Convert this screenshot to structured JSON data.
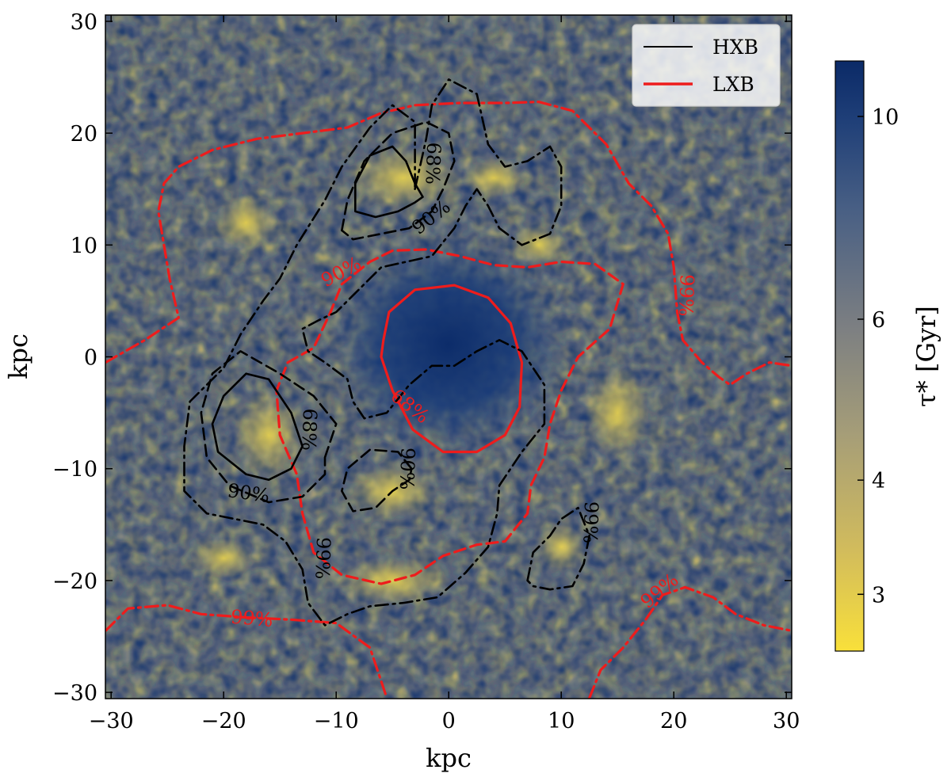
{
  "chart_data": {
    "type": "heatmap",
    "title": "",
    "xlabel": "kpc",
    "ylabel": "kpc",
    "xlim": [
      -30.5,
      30.5
    ],
    "ylim": [
      -30.5,
      30.5
    ],
    "xticks": [
      -30,
      -20,
      -10,
      0,
      10,
      20,
      30
    ],
    "yticks": [
      -30,
      -20,
      -10,
      0,
      10,
      20,
      30
    ],
    "tick_labels": [
      "−30",
      "−20",
      "−10",
      "0",
      "10",
      "20",
      "30"
    ],
    "grid": false,
    "colorbar": {
      "label": "τ* [Gyr]",
      "range": [
        2.6,
        11.5
      ],
      "ticks": [
        3,
        4,
        6,
        10
      ],
      "tick_labels": [
        "3",
        "4",
        "6",
        "10"
      ],
      "colors": {
        "low": "#f7df3c",
        "mid": "#7f7f7f",
        "high": "#0b2d6b"
      }
    },
    "legend": {
      "location": "top-right",
      "entries": [
        {
          "label": "HXB",
          "color": "#000000"
        },
        {
          "label": "LXB",
          "color": "#ee1c1c"
        }
      ]
    },
    "contours": [
      {
        "series": "LXB",
        "level": "68%",
        "style": "solid",
        "color": "#ee1c1c",
        "points": [
          [
            -5.8,
            1.5
          ],
          [
            -5.3,
            4.0
          ],
          [
            -3.0,
            6.0
          ],
          [
            0.5,
            6.4
          ],
          [
            3.5,
            5.3
          ],
          [
            5.5,
            3.0
          ],
          [
            6.5,
            -0.5
          ],
          [
            6.3,
            -4.5
          ],
          [
            5.0,
            -7.0
          ],
          [
            2.5,
            -8.5
          ],
          [
            -0.5,
            -8.5
          ],
          [
            -3.2,
            -6.5
          ],
          [
            -5.0,
            -3.0
          ],
          [
            -6.0,
            0.0
          ],
          [
            -5.8,
            1.5
          ]
        ]
      },
      {
        "series": "LXB",
        "level": "90%",
        "style": "dashed",
        "color": "#ee1c1c",
        "points": [
          [
            -9.5,
            6.5
          ],
          [
            -7.0,
            8.5
          ],
          [
            -5.0,
            9.5
          ],
          [
            -2.0,
            9.6
          ],
          [
            1.0,
            9.0
          ],
          [
            4.0,
            8.2
          ],
          [
            7.0,
            8.0
          ],
          [
            10.0,
            8.5
          ],
          [
            13.0,
            8.3
          ],
          [
            15.5,
            6.5
          ],
          [
            14.3,
            2.5
          ],
          [
            11.5,
            0.0
          ],
          [
            10.0,
            -3.0
          ],
          [
            9.0,
            -6.0
          ],
          [
            8.5,
            -9.0
          ],
          [
            7.3,
            -11.5
          ],
          [
            7.0,
            -14.0
          ],
          [
            5.0,
            -16.5
          ],
          [
            2.5,
            -16.8
          ],
          [
            -0.5,
            -17.8
          ],
          [
            -3.0,
            -19.5
          ],
          [
            -6.0,
            -20.3
          ],
          [
            -9.5,
            -19.5
          ],
          [
            -12.0,
            -17.5
          ],
          [
            -13.0,
            -14.0
          ],
          [
            -13.5,
            -10.5
          ],
          [
            -15.0,
            -7.0
          ],
          [
            -15.3,
            -3.0
          ],
          [
            -14.3,
            -0.5
          ],
          [
            -12.0,
            0.8
          ],
          [
            -10.5,
            4.0
          ],
          [
            -9.5,
            6.5
          ]
        ]
      },
      {
        "series": "LXB",
        "level": "99%",
        "style": "dashdot",
        "color": "#ee1c1c",
        "points": [
          [
            -30.5,
            -0.5
          ],
          [
            -27.0,
            1.5
          ],
          [
            -24.0,
            3.5
          ],
          [
            -24.8,
            7.0
          ],
          [
            -25.3,
            10.0
          ],
          [
            -25.8,
            13.0
          ],
          [
            -25.3,
            15.5
          ],
          [
            -24.0,
            17.0
          ],
          [
            -21.0,
            18.5
          ],
          [
            -17.0,
            19.5
          ],
          [
            -13.0,
            20.0
          ],
          [
            -9.0,
            20.5
          ],
          [
            -6.0,
            21.8
          ],
          [
            -3.0,
            22.5
          ],
          [
            1.0,
            22.7
          ],
          [
            5.0,
            22.7
          ],
          [
            8.0,
            22.8
          ],
          [
            11.0,
            22.0
          ],
          [
            14.0,
            19.0
          ],
          [
            16.0,
            15.5
          ],
          [
            18.0,
            13.5
          ],
          [
            19.5,
            11.0
          ],
          [
            20.0,
            8.0
          ],
          [
            20.3,
            4.0
          ],
          [
            20.8,
            1.5
          ],
          [
            22.5,
            -0.5
          ],
          [
            24.0,
            -1.8
          ],
          [
            25.0,
            -2.5
          ],
          [
            26.5,
            -1.5
          ],
          [
            28.5,
            -0.5
          ],
          [
            30.5,
            -0.8
          ]
        ]
      },
      {
        "series": "LXB",
        "level": "99%",
        "style": "dashdot",
        "color": "#ee1c1c",
        "points": [
          [
            -30.5,
            -24.5
          ],
          [
            -28.5,
            -22.5
          ],
          [
            -25.0,
            -22.2
          ],
          [
            -22.0,
            -23.0
          ],
          [
            -18.0,
            -23.3
          ],
          [
            -14.0,
            -23.5
          ],
          [
            -10.0,
            -23.8
          ],
          [
            -7.0,
            -26.0
          ],
          [
            -5.5,
            -30.5
          ]
        ]
      },
      {
        "series": "LXB",
        "level": "99%",
        "style": "dashdot",
        "color": "#ee1c1c",
        "points": [
          [
            12.5,
            -30.5
          ],
          [
            13.5,
            -28.0
          ],
          [
            15.5,
            -26.0
          ],
          [
            17.5,
            -23.5
          ],
          [
            19.0,
            -21.3
          ],
          [
            21.0,
            -20.6
          ],
          [
            23.5,
            -21.5
          ],
          [
            25.5,
            -23.0
          ],
          [
            28.0,
            -24.0
          ],
          [
            30.5,
            -24.5
          ]
        ]
      },
      {
        "series": "HXB",
        "level": "68%",
        "style": "solid",
        "color": "#000000",
        "points": [
          [
            -2.3,
            14.3
          ],
          [
            -3.0,
            15.5
          ],
          [
            -3.8,
            17.5
          ],
          [
            -5.0,
            18.8
          ],
          [
            -7.0,
            18.0
          ],
          [
            -8.3,
            15.5
          ],
          [
            -8.3,
            13.0
          ],
          [
            -6.5,
            12.5
          ],
          [
            -4.5,
            13.0
          ],
          [
            -3.0,
            13.8
          ],
          [
            -2.3,
            14.3
          ]
        ]
      },
      {
        "series": "HXB",
        "level": "68%",
        "style": "solid",
        "color": "#000000",
        "points": [
          [
            -13.0,
            -8.0
          ],
          [
            -14.0,
            -5.0
          ],
          [
            -16.0,
            -2.0
          ],
          [
            -18.0,
            -1.5
          ],
          [
            -20.0,
            -3.5
          ],
          [
            -21.0,
            -6.0
          ],
          [
            -20.5,
            -8.5
          ],
          [
            -18.0,
            -10.5
          ],
          [
            -16.0,
            -11.0
          ],
          [
            -14.0,
            -10.0
          ],
          [
            -13.0,
            -8.0
          ]
        ]
      },
      {
        "series": "HXB",
        "level": "90%",
        "style": "dashed",
        "color": "#000000",
        "points": [
          [
            -9.5,
            11.3
          ],
          [
            -9.0,
            14.0
          ],
          [
            -7.5,
            17.5
          ],
          [
            -5.0,
            20.0
          ],
          [
            -2.0,
            21.0
          ],
          [
            0.0,
            20.0
          ],
          [
            0.5,
            17.5
          ],
          [
            -0.5,
            15.0
          ],
          [
            -1.5,
            13.0
          ],
          [
            -3.5,
            11.5
          ],
          [
            -6.0,
            11.0
          ],
          [
            -8.5,
            10.5
          ],
          [
            -9.5,
            11.3
          ]
        ]
      },
      {
        "series": "HXB",
        "level": "90%",
        "style": "dashed",
        "color": "#000000",
        "points": [
          [
            -11.0,
            -9.0
          ],
          [
            -10.0,
            -6.0
          ],
          [
            -12.0,
            -3.5
          ],
          [
            -15.0,
            -1.5
          ],
          [
            -18.5,
            0.5
          ],
          [
            -21.0,
            -1.5
          ],
          [
            -22.0,
            -5.0
          ],
          [
            -21.5,
            -9.0
          ],
          [
            -19.5,
            -11.5
          ],
          [
            -16.0,
            -13.0
          ],
          [
            -13.0,
            -12.5
          ],
          [
            -11.0,
            -10.5
          ],
          [
            -11.0,
            -9.0
          ]
        ]
      },
      {
        "series": "HXB",
        "level": "90%",
        "style": "dashed",
        "color": "#000000",
        "points": [
          [
            -3.3,
            -10.0
          ],
          [
            -4.5,
            -8.5
          ],
          [
            -7.0,
            -8.3
          ],
          [
            -9.0,
            -10.0
          ],
          [
            -9.5,
            -12.0
          ],
          [
            -8.5,
            -13.8
          ],
          [
            -6.5,
            -13.5
          ],
          [
            -5.0,
            -12.0
          ],
          [
            -3.5,
            -11.0
          ],
          [
            -3.3,
            -10.0
          ]
        ]
      },
      {
        "series": "HXB",
        "level": "99%",
        "style": "dashdot",
        "color": "#000000",
        "points": [
          [
            -3.0,
            15.0
          ],
          [
            -2.0,
            19.5
          ],
          [
            -1.5,
            22.5
          ],
          [
            0.0,
            24.8
          ],
          [
            2.5,
            23.5
          ],
          [
            3.5,
            19.0
          ],
          [
            5.0,
            17.0
          ],
          [
            7.0,
            17.5
          ],
          [
            9.0,
            18.8
          ],
          [
            10.0,
            17.0
          ],
          [
            10.0,
            13.5
          ],
          [
            9.0,
            11.0
          ],
          [
            6.5,
            10.0
          ],
          [
            4.5,
            11.5
          ],
          [
            3.5,
            13.5
          ],
          [
            2.5,
            15.0
          ],
          [
            1.5,
            13.5
          ],
          [
            0.5,
            11.5
          ],
          [
            -1.5,
            9.0
          ],
          [
            -6.0,
            8.0
          ],
          [
            -8.0,
            6.0
          ],
          [
            -10.0,
            4.0
          ],
          [
            -11.5,
            3.3
          ],
          [
            -13.0,
            2.5
          ],
          [
            -12.5,
            0.5
          ],
          [
            -11.0,
            -0.5
          ],
          [
            -9.0,
            -2.0
          ],
          [
            -8.5,
            -4.0
          ],
          [
            -7.5,
            -5.5
          ],
          [
            -5.5,
            -5.0
          ],
          [
            -3.5,
            -2.5
          ],
          [
            -1.5,
            -0.8
          ],
          [
            0.5,
            -0.8
          ],
          [
            2.5,
            0.5
          ],
          [
            4.5,
            1.5
          ],
          [
            6.5,
            0.5
          ],
          [
            8.5,
            -2.5
          ],
          [
            8.5,
            -6.0
          ],
          [
            6.5,
            -8.5
          ],
          [
            4.5,
            -11.5
          ],
          [
            4.3,
            -14.0
          ],
          [
            3.5,
            -17.0
          ],
          [
            1.5,
            -19.3
          ],
          [
            -1.0,
            -21.5
          ],
          [
            -4.0,
            -22.0
          ],
          [
            -7.0,
            -22.3
          ],
          [
            -9.0,
            -23.0
          ],
          [
            -11.0,
            -24.0
          ],
          [
            -12.5,
            -22.0
          ],
          [
            -13.0,
            -19.0
          ],
          [
            -14.5,
            -16.5
          ],
          [
            -16.5,
            -15.0
          ],
          [
            -19.0,
            -14.5
          ],
          [
            -21.5,
            -14.0
          ],
          [
            -23.5,
            -12.0
          ],
          [
            -23.5,
            -8.0
          ],
          [
            -23.0,
            -4.0
          ],
          [
            -20.0,
            -1.0
          ],
          [
            -18.5,
            2.0
          ],
          [
            -16.5,
            5.0
          ],
          [
            -15.0,
            7.0
          ],
          [
            -13.5,
            10.0
          ],
          [
            -11.0,
            14.0
          ],
          [
            -9.5,
            17.0
          ],
          [
            -7.0,
            20.5
          ],
          [
            -5.0,
            22.5
          ],
          [
            -3.0,
            21.0
          ],
          [
            -3.0,
            15.0
          ]
        ]
      },
      {
        "series": "HXB",
        "level": "99%",
        "style": "dashdot",
        "color": "#000000",
        "points": [
          [
            7.0,
            -20.0
          ],
          [
            7.5,
            -17.5
          ],
          [
            9.0,
            -16.0
          ],
          [
            10.0,
            -14.5
          ],
          [
            11.5,
            -13.5
          ],
          [
            12.5,
            -16.0
          ],
          [
            12.0,
            -18.5
          ],
          [
            11.0,
            -20.5
          ],
          [
            9.0,
            -20.8
          ],
          [
            7.5,
            -20.5
          ],
          [
            7.0,
            -20.0
          ]
        ]
      }
    ],
    "contour_labels": [
      {
        "text": "68%",
        "color": "#000000",
        "x": -1.5,
        "y": 17.3,
        "angle": 92
      },
      {
        "text": "90%",
        "color": "#000000",
        "x": -1.5,
        "y": 12.4,
        "angle": -38
      },
      {
        "text": "68%",
        "color": "#000000",
        "x": -12.5,
        "y": -6.5,
        "angle": 92
      },
      {
        "text": "90%",
        "color": "#000000",
        "x": -17.8,
        "y": -12.3,
        "angle": 8
      },
      {
        "text": "90%",
        "color": "#000000",
        "x": -3.8,
        "y": -10.0,
        "angle": 92
      },
      {
        "text": "99%",
        "color": "#000000",
        "x": -11.3,
        "y": -18.0,
        "angle": 92
      },
      {
        "text": "99%",
        "color": "#000000",
        "x": 12.5,
        "y": -14.8,
        "angle": 92
      },
      {
        "text": "90%",
        "color": "#ee1c1c",
        "x": -9.5,
        "y": 7.5,
        "angle": -28
      },
      {
        "text": "68%",
        "color": "#ee1c1c",
        "x": -3.5,
        "y": -4.5,
        "angle": 38
      },
      {
        "text": "99%",
        "color": "#ee1c1c",
        "x": 21.0,
        "y": 5.5,
        "angle": 92
      },
      {
        "text": "99%",
        "color": "#ee1c1c",
        "x": -17.5,
        "y": -23.5,
        "angle": 5
      },
      {
        "text": "99%",
        "color": "#ee1c1c",
        "x": 18.8,
        "y": -21.0,
        "angle": -40
      }
    ]
  }
}
